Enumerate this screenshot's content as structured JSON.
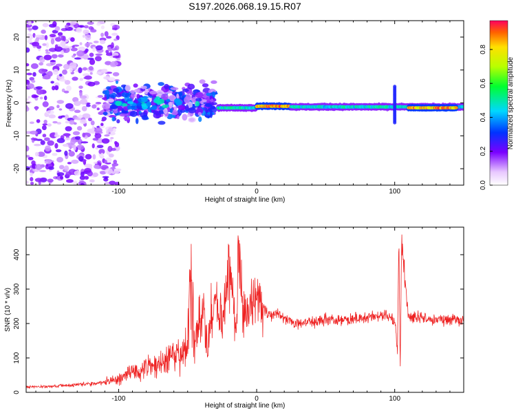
{
  "title": "S197.2026.068.19.15.R07",
  "chart_data": [
    {
      "type": "heatmap",
      "title": "",
      "xlabel": "Height of straight line (km)",
      "ylabel": "Frequency (Hz)",
      "xlim": [
        -167,
        150
      ],
      "ylim": [
        -25,
        25
      ],
      "xticks": [
        -100,
        0,
        100
      ],
      "yticks": [
        -20,
        -10,
        0,
        10,
        20
      ],
      "colorbar": {
        "label": "Normalized spectral amplitude",
        "range": [
          0,
          0.97
        ],
        "ticks": [
          0.0,
          0.2,
          0.4,
          0.6,
          0.8
        ],
        "tick_labels": [
          "0.0",
          "0.2",
          "0.4",
          "0.6",
          "0.8"
        ]
      },
      "regions": [
        {
          "x": [
            -167,
            -110
          ],
          "freq_spread": 25,
          "amplitude": 0.1,
          "note": "diffuse noise"
        },
        {
          "x": [
            -110,
            -30
          ],
          "freq_center": 0,
          "freq_spread": 6,
          "amplitude": 0.25
        },
        {
          "x": [
            -28,
            0
          ],
          "freq_center": -1.5,
          "freq_spread": 1,
          "amplitude": 0.5
        },
        {
          "x": [
            0,
            25
          ],
          "freq_center": -1,
          "freq_spread": 1,
          "amplitude": 0.9
        },
        {
          "x": [
            25,
            150
          ],
          "freq_center": -1.2,
          "freq_spread": 1.2,
          "amplitude": 0.5
        },
        {
          "x": [
            110,
            145
          ],
          "freq_center": -1.5,
          "freq_spread": 0.6,
          "amplitude": 0.9
        }
      ],
      "annotations": [
        {
          "x": 100,
          "freq": [
            -6,
            5
          ],
          "note": "vertical spike"
        }
      ]
    },
    {
      "type": "line",
      "title": "",
      "xlabel": "Height of straight line (km)",
      "ylabel": "SNR (10 * v/v)",
      "xlim": [
        -167,
        150
      ],
      "ylim": [
        0,
        480
      ],
      "xticks": [
        -100,
        0,
        100
      ],
      "yticks": [
        0,
        100,
        200,
        300,
        400
      ],
      "series": [
        {
          "name": "SNR",
          "color": "#ee2222",
          "x": [
            -167,
            -150,
            -130,
            -110,
            -100,
            -90,
            -80,
            -70,
            -60,
            -50,
            -48,
            -45,
            -40,
            -35,
            -30,
            -25,
            -20,
            -15,
            -13,
            -10,
            -5,
            0,
            5,
            10,
            15,
            20,
            30,
            40,
            50,
            60,
            70,
            80,
            90,
            95,
            100,
            102,
            103,
            104,
            105,
            110,
            120,
            130,
            140,
            150
          ],
          "y": [
            15,
            17,
            22,
            28,
            40,
            55,
            70,
            85,
            110,
            120,
            360,
            150,
            250,
            140,
            300,
            180,
            360,
            170,
            420,
            220,
            250,
            260,
            240,
            225,
            230,
            215,
            200,
            205,
            210,
            212,
            215,
            218,
            222,
            220,
            210,
            120,
            460,
            60,
            440,
            215,
            218,
            210,
            212,
            210
          ]
        }
      ]
    }
  ]
}
